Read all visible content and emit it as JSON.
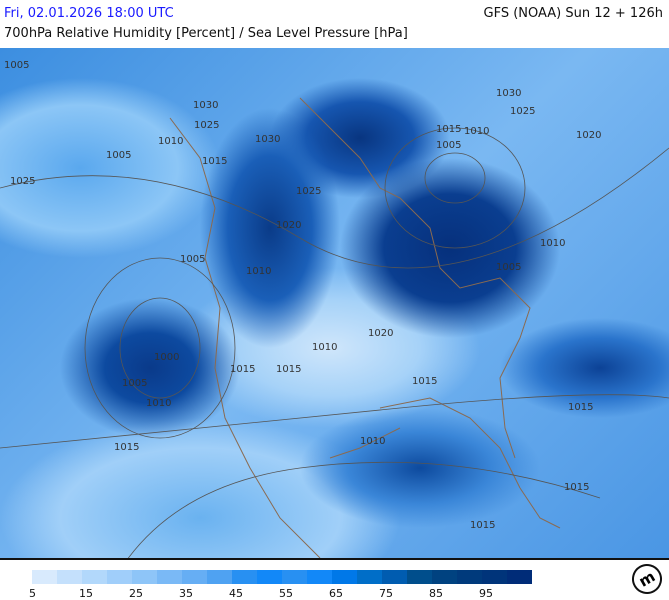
{
  "header": {
    "datetime": "Fri, 02.01.2026 18:00 UTC",
    "model": "GFS (NOAA) Sun 12 + 126h",
    "parameter": "700hPa Relative Humidity [Percent] / Sea Level Pressure [hPa]"
  },
  "map": {
    "isobar_labels": [
      "1005",
      "1025",
      "1005",
      "1010",
      "1030",
      "1015",
      "1025",
      "1030",
      "1015",
      "1010",
      "1030",
      "1025",
      "1020",
      "1005",
      "1025",
      "1020",
      "1010",
      "1005",
      "1005",
      "1010",
      "1000",
      "1005",
      "1010",
      "1015",
      "1020",
      "1015",
      "1010",
      "1015",
      "1015",
      "1010",
      "1015",
      "1015",
      "1015"
    ]
  },
  "legend": {
    "colors": [
      "#d8eafd",
      "#c4e0fc",
      "#b2d8fb",
      "#a0cefa",
      "#8ec5f8",
      "#7ab9f6",
      "#66aef4",
      "#4fa2f2",
      "#2890f2",
      "#1288f8",
      "#0078e8",
      "#006ec8",
      "#005cb0",
      "#004e8c",
      "#004280",
      "#003a7c",
      "#00347a",
      "#002c78"
    ],
    "ticks": [
      "5",
      "15",
      "25",
      "35",
      "45",
      "55",
      "65",
      "75",
      "85",
      "95"
    ]
  },
  "logo": "m"
}
